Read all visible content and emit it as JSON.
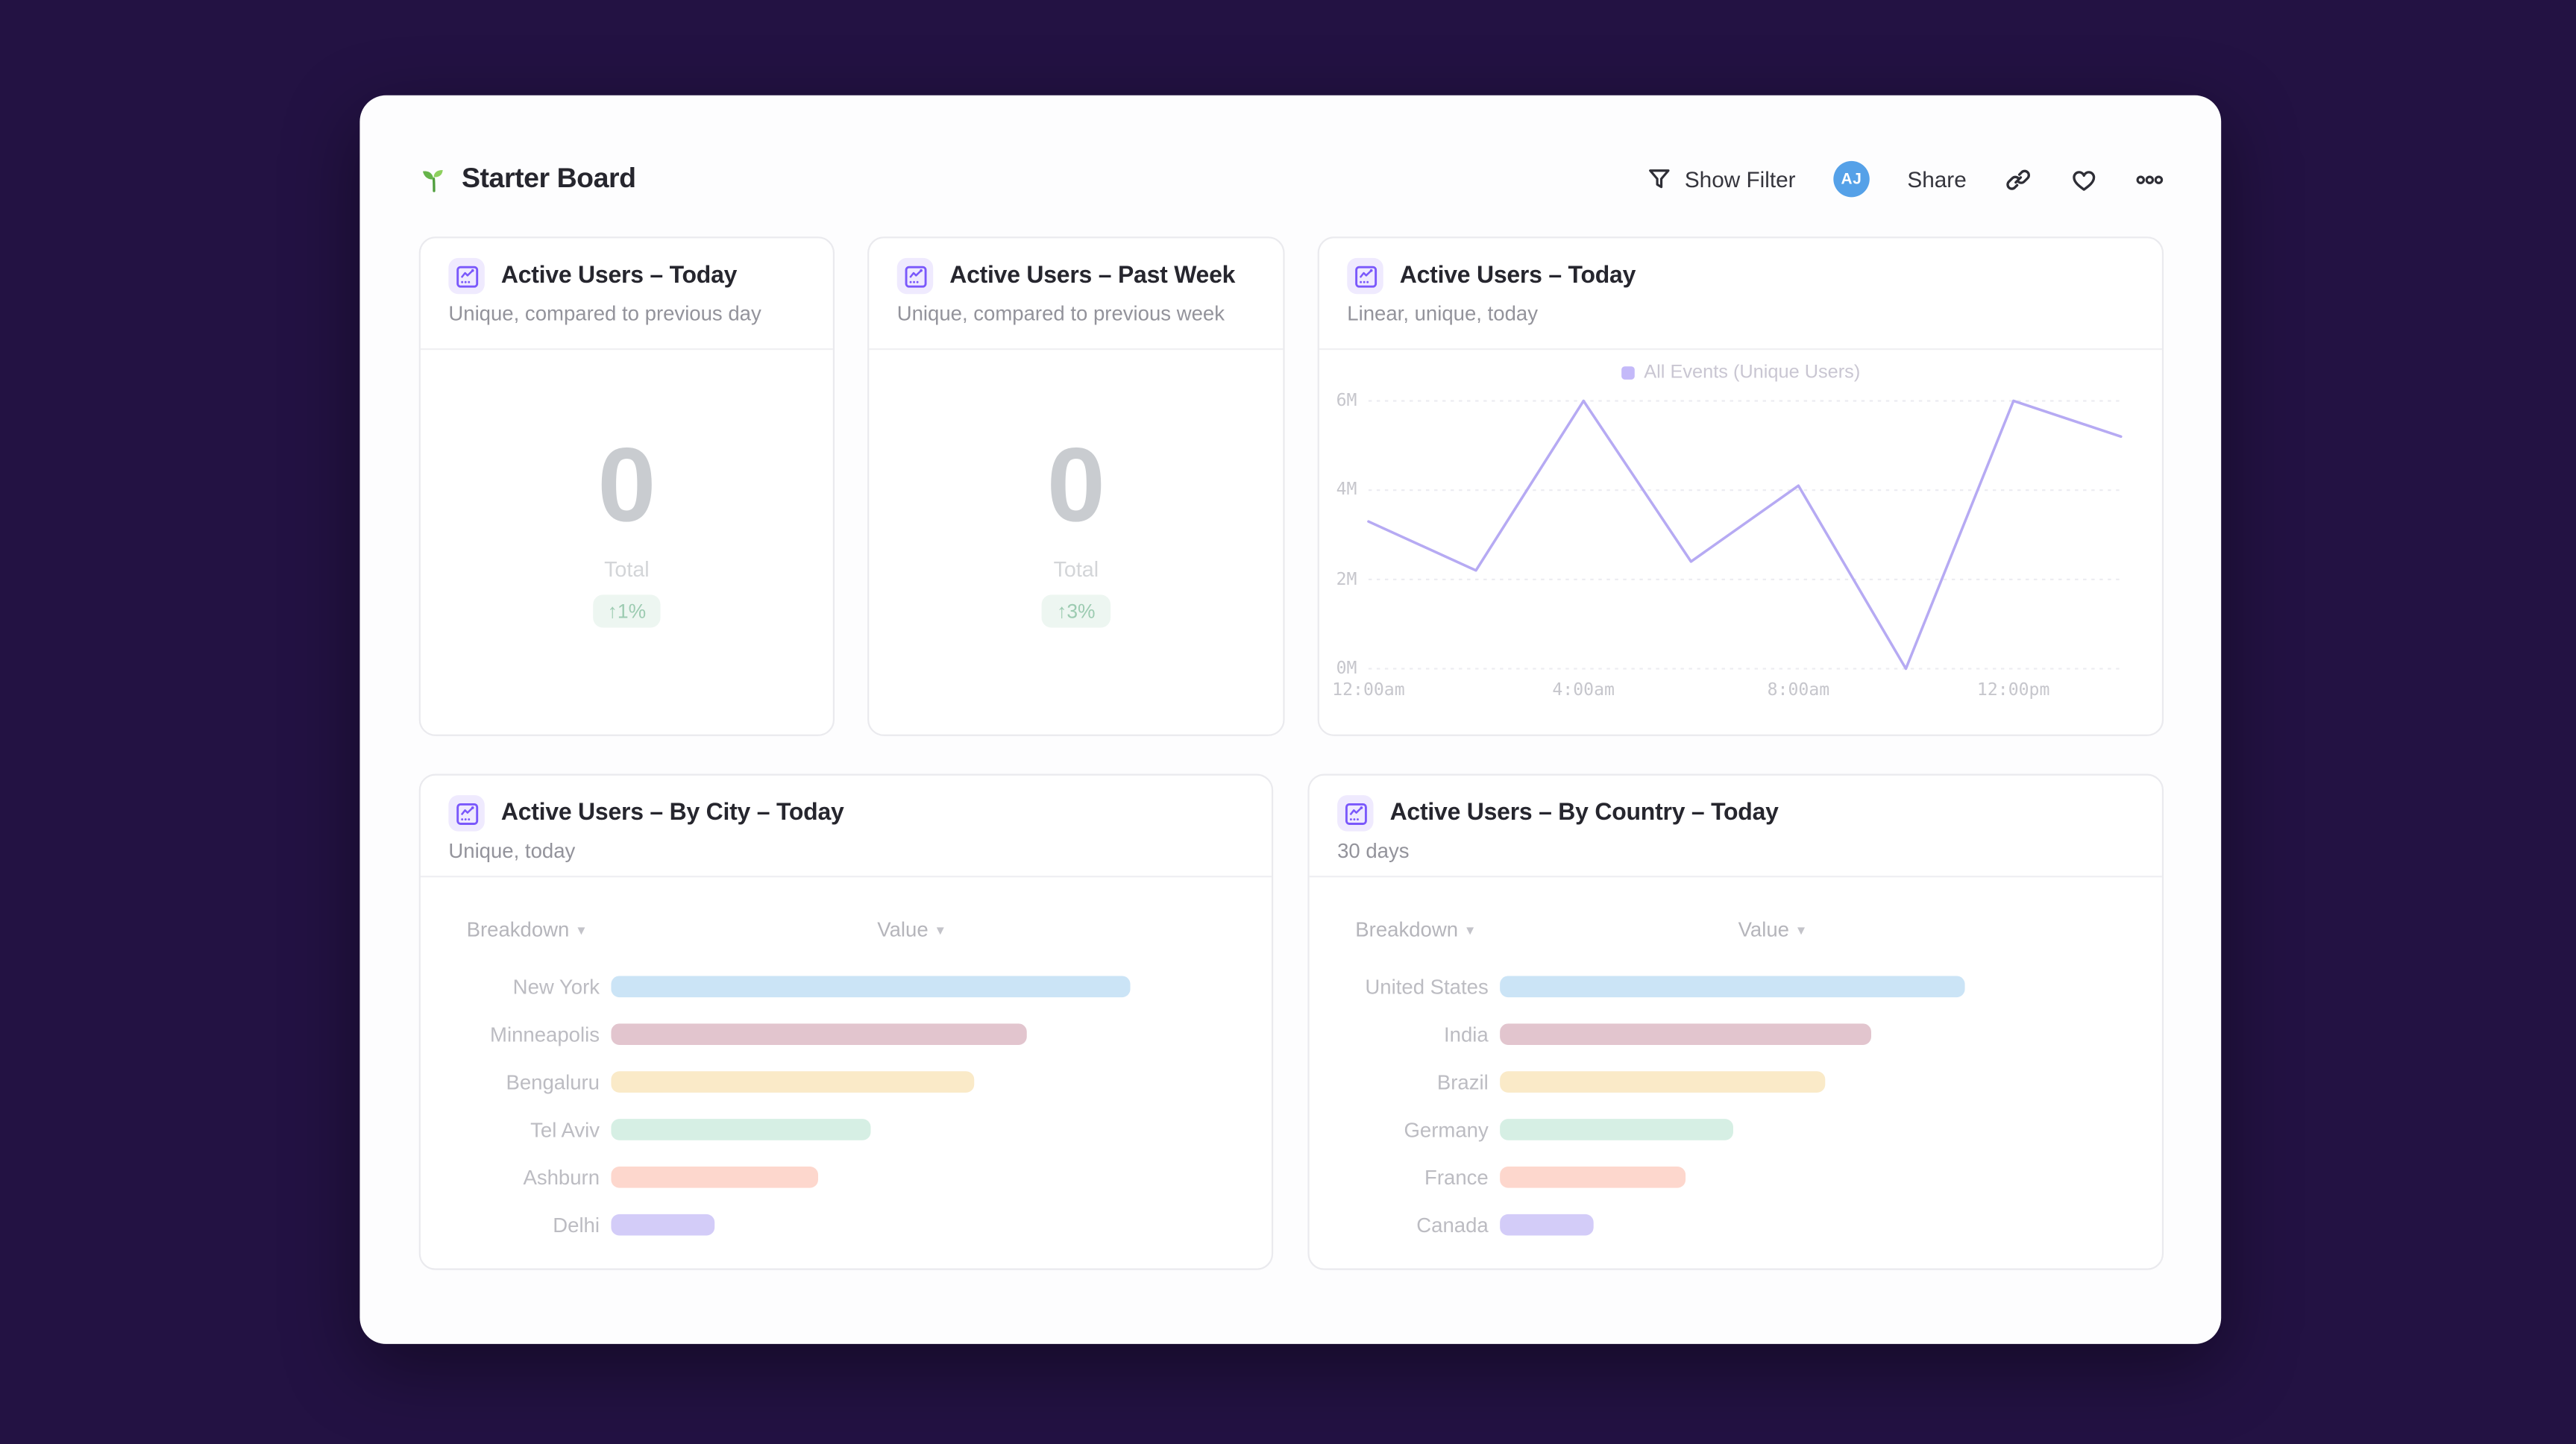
{
  "colors": {
    "page_background": "#231243",
    "panel_background": "#fdfdfe",
    "card_border": "#eaeaee",
    "accent_purple": "#7a58fb",
    "avatar_blue": "#55a1e8",
    "badge_green_bg": "#edf6f1",
    "badge_green_text": "#9ccbb1",
    "line_purple": "#b6aaf3"
  },
  "header": {
    "title": "Starter Board",
    "toolbar": {
      "show_filter_label": "Show Filter",
      "avatar_initials": "AJ",
      "share_label": "Share"
    }
  },
  "cards": [
    {
      "title": "Active Users – Today",
      "subtitle": "Unique, compared to previous day",
      "big_value": "0",
      "total_label": "Total",
      "change_badge": "↑1%"
    },
    {
      "title": "Active Users – Past Week",
      "subtitle": "Unique, compared to previous week",
      "big_value": "0",
      "total_label": "Total",
      "change_badge": "↑3%"
    },
    {
      "title": "Active Users – Today",
      "subtitle": "Linear, unique, today"
    },
    {
      "title": "Active Users – By City – Today",
      "subtitle": "Unique, today"
    },
    {
      "title": "Active Users – By Country – Today",
      "subtitle": "30 days"
    }
  ],
  "chart_data": [
    {
      "type": "line",
      "title": "Active Users – Today",
      "legend_position": "top-center",
      "grid": "horizontal-dashed",
      "ylim_millions": [
        0,
        6
      ],
      "yticks": [
        "0M",
        "2M",
        "4M",
        "6M"
      ],
      "xticks": [
        "12:00am",
        "4:00am",
        "8:00am",
        "12:00pm"
      ],
      "series": [
        {
          "name": "All Events (Unique Users)",
          "x": [
            "12:00am",
            "2:00am",
            "4:00am",
            "6:00am",
            "8:00am",
            "10:00am",
            "12:00pm",
            "2:00pm"
          ],
          "values_millions": [
            3.3,
            2.2,
            6.0,
            2.4,
            4.1,
            0.0,
            6.0,
            5.2
          ]
        }
      ]
    },
    {
      "type": "bar",
      "orientation": "horizontal",
      "title": "Active Users – By City – Today",
      "columns": [
        "Breakdown",
        "Value"
      ],
      "categories": [
        "New York",
        "Minneapolis",
        "Bengaluru",
        "Tel Aviv",
        "Ashburn",
        "Delhi"
      ],
      "values_relative_pct": [
        100,
        80,
        70,
        50,
        40,
        20
      ],
      "bar_colors": [
        "#cbe4f6",
        "#e2c5ce",
        "#faeac8",
        "#d6efe4",
        "#fdd7cd",
        "#d3ccf8"
      ]
    },
    {
      "type": "bar",
      "orientation": "horizontal",
      "title": "Active Users – By Country – Today",
      "columns": [
        "Breakdown",
        "Value"
      ],
      "categories": [
        "United States",
        "India",
        "Brazil",
        "Germany",
        "France",
        "Canada"
      ],
      "values_relative_pct": [
        100,
        80,
        70,
        50,
        40,
        20
      ],
      "bar_colors": [
        "#cbe4f6",
        "#e2c5ce",
        "#faeac8",
        "#d6efe4",
        "#fdd7cd",
        "#d3ccf8"
      ]
    }
  ]
}
